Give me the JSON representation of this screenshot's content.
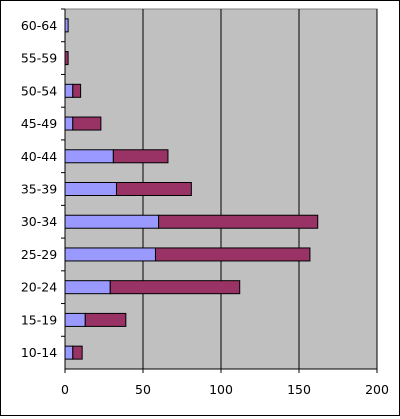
{
  "chart_data": {
    "type": "bar",
    "orientation": "horizontal",
    "stacked": true,
    "categories": [
      "60-64",
      "55-59",
      "50-54",
      "45-49",
      "40-44",
      "35-39",
      "30-34",
      "25-29",
      "20-24",
      "15-19",
      "10-14"
    ],
    "series": [
      {
        "color": "#9999ff",
        "values": [
          2,
          0,
          5,
          5,
          31,
          33,
          60,
          58,
          29,
          13,
          5
        ]
      },
      {
        "color": "#993366",
        "values": [
          0,
          2,
          5,
          18,
          35,
          48,
          102,
          99,
          83,
          26,
          6
        ]
      }
    ],
    "xlim": [
      0,
      200
    ],
    "x_ticks": [
      "0",
      "50",
      "100",
      "150",
      "200"
    ],
    "x_tick_values": [
      0,
      50,
      100,
      150,
      200
    ],
    "grid": "vertical",
    "legend": "none",
    "plot_background": "#c0c0c0"
  }
}
